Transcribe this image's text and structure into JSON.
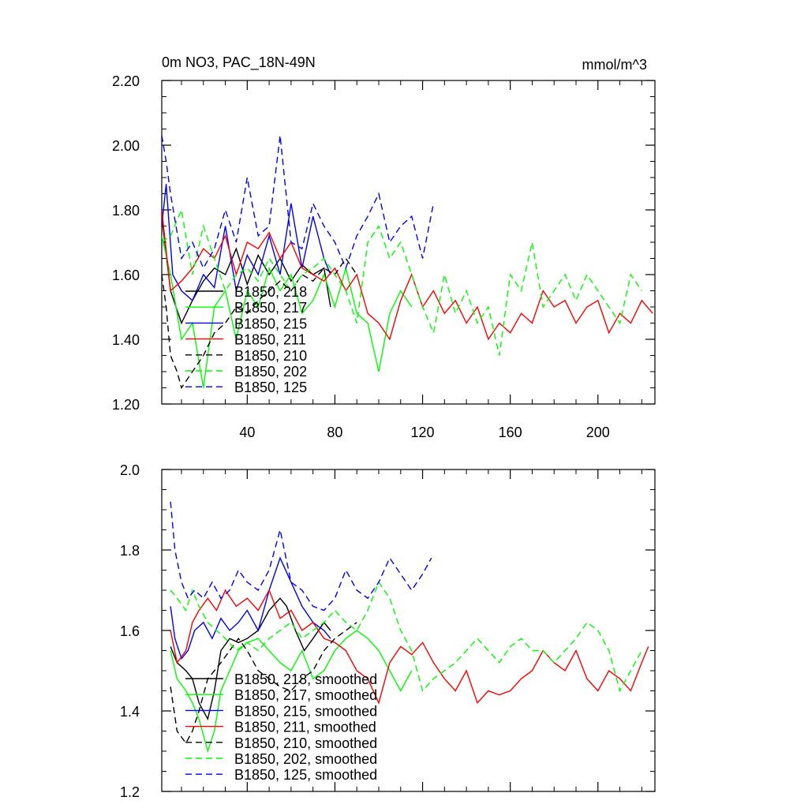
{
  "chart_data": [
    {
      "type": "line",
      "title": "0m NO3, PAC_18N-49N",
      "units_label": "mmol/m^3",
      "xlabel": "",
      "ylabel": "",
      "xlim": [
        1,
        226
      ],
      "ylim": [
        1.2,
        2.2
      ],
      "xticks": [
        40,
        80,
        120,
        160,
        200
      ],
      "yticks": [
        1.2,
        1.4,
        1.6,
        1.8,
        2.0,
        2.2
      ],
      "ytick_labels": [
        "1.20",
        "1.40",
        "1.60",
        "1.80",
        "2.00",
        "2.20"
      ],
      "grid": false,
      "legend_position": "lower-left",
      "series": [
        {
          "name": "B1850, 218",
          "color": "#000000",
          "dash": "solid",
          "x": [
            1,
            5,
            10,
            15,
            20,
            25,
            30,
            35,
            40,
            45,
            50,
            55,
            60,
            65,
            70,
            75,
            78
          ],
          "values": [
            1.78,
            1.55,
            1.45,
            1.52,
            1.58,
            1.62,
            1.6,
            1.68,
            1.57,
            1.66,
            1.6,
            1.65,
            1.58,
            1.63,
            1.6,
            1.62,
            1.5
          ]
        },
        {
          "name": "B1850, 217",
          "color": "#00ff00",
          "dash": "solid",
          "x": [
            1,
            5,
            10,
            15,
            20,
            25,
            30,
            35,
            40,
            45,
            50,
            55,
            60,
            65,
            70,
            75,
            80,
            85,
            90,
            95,
            100,
            105,
            110,
            115
          ],
          "values": [
            1.72,
            1.6,
            1.4,
            1.45,
            1.25,
            1.5,
            1.55,
            1.4,
            1.55,
            1.5,
            1.62,
            1.55,
            1.6,
            1.48,
            1.52,
            1.6,
            1.5,
            1.62,
            1.48,
            1.45,
            1.3,
            1.48,
            1.55,
            1.5
          ]
        },
        {
          "name": "B1850, 215",
          "color": "#0000ff",
          "dash": "solid",
          "x": [
            1,
            3,
            6,
            10,
            15,
            20,
            25,
            30,
            35,
            40,
            45,
            50,
            55,
            60,
            65,
            70,
            75,
            78
          ],
          "values": [
            1.75,
            1.88,
            1.6,
            1.55,
            1.52,
            1.6,
            1.56,
            1.75,
            1.55,
            1.66,
            1.6,
            1.72,
            1.6,
            1.82,
            1.62,
            1.78,
            1.65,
            1.6
          ]
        },
        {
          "name": "B1850, 211",
          "color": "#ff0000",
          "dash": "solid",
          "x": [
            1,
            5,
            10,
            15,
            20,
            25,
            30,
            35,
            40,
            45,
            50,
            55,
            60,
            65,
            70,
            75,
            80,
            85,
            90,
            95,
            100,
            105,
            110,
            115,
            120,
            125,
            130,
            135,
            140,
            145,
            150,
            155,
            160,
            165,
            170,
            175,
            180,
            185,
            190,
            195,
            200,
            205,
            210,
            215,
            220,
            225
          ],
          "values": [
            1.8,
            1.55,
            1.58,
            1.62,
            1.68,
            1.65,
            1.72,
            1.6,
            1.7,
            1.68,
            1.73,
            1.65,
            1.7,
            1.62,
            1.6,
            1.58,
            1.62,
            1.55,
            1.6,
            1.48,
            1.45,
            1.4,
            1.52,
            1.6,
            1.5,
            1.55,
            1.48,
            1.52,
            1.45,
            1.5,
            1.4,
            1.45,
            1.42,
            1.48,
            1.45,
            1.55,
            1.5,
            1.52,
            1.45,
            1.5,
            1.52,
            1.42,
            1.48,
            1.45,
            1.52,
            1.48
          ]
        },
        {
          "name": "B1850, 210",
          "color": "#000000",
          "dash": "dashed",
          "x": [
            1,
            3,
            5,
            8,
            10,
            15,
            20,
            25,
            30,
            35,
            40,
            45,
            50,
            55,
            60,
            65,
            70,
            75,
            80,
            85,
            90
          ],
          "values": [
            1.6,
            1.5,
            1.35,
            1.3,
            1.25,
            1.3,
            1.35,
            1.42,
            1.45,
            1.5,
            1.48,
            1.52,
            1.55,
            1.58,
            1.55,
            1.6,
            1.58,
            1.62,
            1.6,
            1.65,
            1.6
          ]
        },
        {
          "name": "B1850, 202",
          "color": "#00ff00",
          "dash": "dashed",
          "x": [
            1,
            5,
            10,
            15,
            20,
            25,
            30,
            35,
            40,
            45,
            50,
            55,
            60,
            65,
            70,
            75,
            80,
            85,
            90,
            95,
            100,
            105,
            110,
            115,
            120,
            125,
            130,
            135,
            140,
            145,
            150,
            155,
            160,
            165,
            170,
            175,
            180,
            185,
            190,
            195,
            200,
            205,
            210,
            215,
            220
          ],
          "values": [
            1.7,
            1.72,
            1.8,
            1.6,
            1.75,
            1.65,
            1.55,
            1.6,
            1.62,
            1.58,
            1.65,
            1.6,
            1.55,
            1.6,
            1.62,
            1.65,
            1.6,
            1.55,
            1.45,
            1.7,
            1.75,
            1.65,
            1.7,
            1.6,
            1.5,
            1.42,
            1.6,
            1.48,
            1.55,
            1.45,
            1.5,
            1.35,
            1.6,
            1.55,
            1.7,
            1.5,
            1.55,
            1.6,
            1.52,
            1.6,
            1.55,
            1.5,
            1.45,
            1.6,
            1.55
          ]
        },
        {
          "name": "B1850, 125",
          "color": "#0000ff",
          "dash": "dashed",
          "x": [
            1,
            3,
            5,
            10,
            15,
            20,
            25,
            30,
            35,
            40,
            45,
            50,
            55,
            60,
            65,
            70,
            75,
            80,
            85,
            90,
            95,
            100,
            105,
            110,
            115,
            120,
            125
          ],
          "values": [
            2.03,
            1.95,
            1.85,
            1.65,
            1.7,
            1.62,
            1.68,
            1.8,
            1.7,
            1.9,
            1.72,
            1.75,
            2.03,
            1.7,
            1.68,
            1.82,
            1.75,
            1.7,
            1.62,
            1.72,
            1.78,
            1.85,
            1.7,
            1.75,
            1.78,
            1.65,
            1.82
          ]
        }
      ]
    },
    {
      "type": "line",
      "title": "",
      "xlabel": "",
      "ylabel": "",
      "xlim": [
        1,
        226
      ],
      "ylim": [
        1.2,
        2.0
      ],
      "xticks": [
        40,
        80,
        120,
        160,
        200
      ],
      "yticks": [
        1.2,
        1.4,
        1.6,
        1.8,
        2.0
      ],
      "ytick_labels": [
        "1.2",
        "1.4",
        "1.6",
        "1.8",
        "2.0"
      ],
      "grid": false,
      "legend_position": "lower-left",
      "series": [
        {
          "name": "B1850, 218, smoothed",
          "color": "#000000",
          "dash": "solid",
          "x": [
            5,
            8,
            12,
            15,
            18,
            22,
            25,
            28,
            32,
            36,
            40,
            45,
            50,
            55,
            58,
            62,
            66,
            70,
            75,
            78
          ],
          "values": [
            1.56,
            1.52,
            1.5,
            1.48,
            1.42,
            1.38,
            1.45,
            1.55,
            1.58,
            1.57,
            1.58,
            1.6,
            1.65,
            1.68,
            1.66,
            1.6,
            1.55,
            1.58,
            1.62,
            1.6
          ]
        },
        {
          "name": "B1850, 217, smoothed",
          "color": "#00ff00",
          "dash": "solid",
          "x": [
            5,
            8,
            12,
            15,
            18,
            22,
            25,
            28,
            32,
            36,
            40,
            45,
            50,
            55,
            60,
            65,
            70,
            75,
            80,
            85,
            90,
            95,
            100,
            105,
            110,
            115
          ],
          "values": [
            1.55,
            1.48,
            1.45,
            1.42,
            1.38,
            1.3,
            1.35,
            1.45,
            1.5,
            1.55,
            1.57,
            1.58,
            1.55,
            1.52,
            1.5,
            1.55,
            1.48,
            1.5,
            1.55,
            1.58,
            1.6,
            1.58,
            1.55,
            1.5,
            1.45,
            1.5
          ]
        },
        {
          "name": "B1850, 215, smoothed",
          "color": "#0000ff",
          "dash": "solid",
          "x": [
            5,
            7,
            10,
            13,
            16,
            20,
            24,
            28,
            32,
            36,
            40,
            45,
            50,
            55,
            60,
            65,
            70,
            75,
            78
          ],
          "values": [
            1.66,
            1.58,
            1.53,
            1.55,
            1.6,
            1.62,
            1.58,
            1.63,
            1.6,
            1.62,
            1.65,
            1.6,
            1.7,
            1.78,
            1.72,
            1.66,
            1.62,
            1.6,
            1.58
          ]
        },
        {
          "name": "B1850, 211, smoothed",
          "color": "#ff0000",
          "dash": "solid",
          "x": [
            5,
            8,
            12,
            15,
            18,
            22,
            26,
            30,
            35,
            40,
            45,
            50,
            55,
            60,
            65,
            70,
            75,
            80,
            85,
            90,
            95,
            100,
            105,
            110,
            115,
            120,
            125,
            130,
            135,
            140,
            145,
            150,
            155,
            160,
            165,
            170,
            175,
            180,
            185,
            190,
            195,
            200,
            205,
            210,
            215,
            220,
            223
          ],
          "values": [
            1.6,
            1.52,
            1.55,
            1.62,
            1.65,
            1.68,
            1.65,
            1.7,
            1.66,
            1.68,
            1.65,
            1.7,
            1.63,
            1.65,
            1.6,
            1.62,
            1.58,
            1.57,
            1.55,
            1.5,
            1.48,
            1.42,
            1.52,
            1.56,
            1.54,
            1.57,
            1.52,
            1.48,
            1.45,
            1.5,
            1.42,
            1.45,
            1.44,
            1.45,
            1.48,
            1.5,
            1.55,
            1.52,
            1.5,
            1.55,
            1.48,
            1.45,
            1.5,
            1.48,
            1.45,
            1.52,
            1.56
          ]
        },
        {
          "name": "B1850, 210, smoothed",
          "color": "#000000",
          "dash": "dashed",
          "x": [
            5,
            8,
            12,
            15,
            18,
            22,
            25,
            28,
            32,
            36,
            40,
            45,
            50,
            55,
            60,
            65,
            70,
            75,
            80,
            85,
            90
          ],
          "values": [
            1.46,
            1.35,
            1.32,
            1.35,
            1.4,
            1.48,
            1.5,
            1.52,
            1.55,
            1.58,
            1.55,
            1.5,
            1.48,
            1.46,
            1.45,
            1.48,
            1.5,
            1.55,
            1.58,
            1.6,
            1.62
          ]
        },
        {
          "name": "B1850, 202, smoothed",
          "color": "#00ff00",
          "dash": "dashed",
          "x": [
            5,
            8,
            12,
            15,
            18,
            22,
            26,
            30,
            35,
            40,
            45,
            50,
            55,
            60,
            65,
            70,
            75,
            80,
            85,
            90,
            95,
            100,
            105,
            110,
            115,
            120,
            125,
            130,
            135,
            140,
            145,
            150,
            155,
            160,
            165,
            170,
            175,
            180,
            185,
            190,
            195,
            200,
            205,
            210,
            215,
            220
          ],
          "values": [
            1.7,
            1.68,
            1.65,
            1.7,
            1.66,
            1.62,
            1.6,
            1.58,
            1.55,
            1.57,
            1.55,
            1.58,
            1.6,
            1.62,
            1.58,
            1.6,
            1.62,
            1.65,
            1.62,
            1.6,
            1.65,
            1.72,
            1.68,
            1.6,
            1.55,
            1.45,
            1.48,
            1.5,
            1.52,
            1.55,
            1.58,
            1.55,
            1.52,
            1.56,
            1.58,
            1.55,
            1.55,
            1.52,
            1.55,
            1.58,
            1.62,
            1.6,
            1.55,
            1.45,
            1.5,
            1.55
          ]
        },
        {
          "name": "B1850, 125, smoothed",
          "color": "#0000ff",
          "dash": "dashed",
          "x": [
            5,
            7,
            10,
            13,
            16,
            20,
            24,
            28,
            32,
            36,
            40,
            45,
            50,
            55,
            60,
            65,
            70,
            75,
            80,
            85,
            90,
            95,
            100,
            105,
            110,
            115,
            120,
            124
          ],
          "values": [
            1.92,
            1.8,
            1.72,
            1.68,
            1.7,
            1.68,
            1.72,
            1.68,
            1.7,
            1.75,
            1.72,
            1.7,
            1.75,
            1.85,
            1.72,
            1.7,
            1.66,
            1.65,
            1.68,
            1.75,
            1.7,
            1.68,
            1.72,
            1.78,
            1.74,
            1.7,
            1.74,
            1.78
          ]
        }
      ]
    }
  ]
}
